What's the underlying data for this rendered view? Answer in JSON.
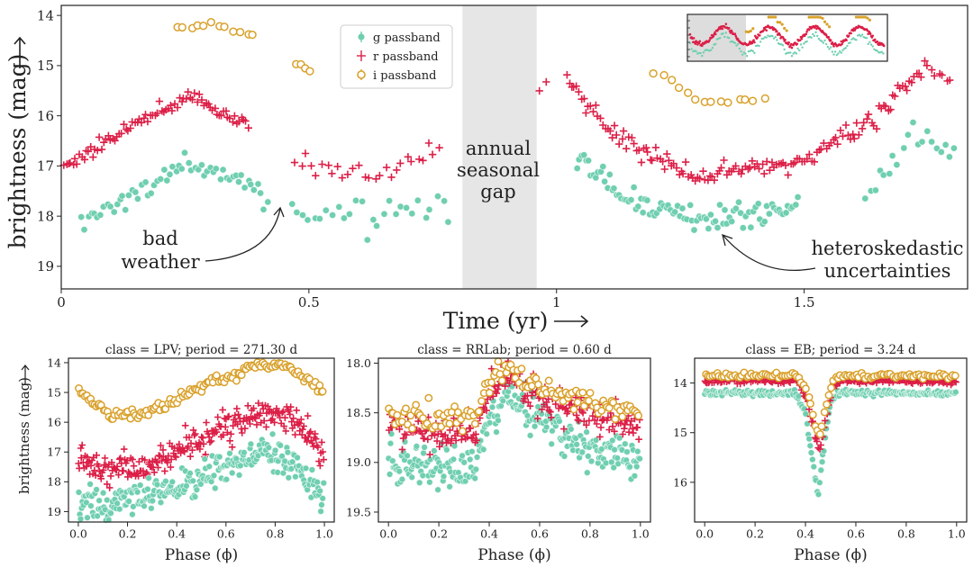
{
  "colors": {
    "g": "#6fcfb0",
    "g_edge": "#e8f7f1",
    "r": "#dc1f47",
    "i": "#d9a12b",
    "gap": "#e6e6e6",
    "axis": "#222222",
    "inset_bg": "#dddddd"
  },
  "chart_data": [
    {
      "id": "main",
      "type": "scatter",
      "xlabel": "Time (yr)",
      "ylabel": "brightness (mag)",
      "xlim": [
        0,
        1.83
      ],
      "ylim": [
        19.45,
        13.8
      ],
      "y_inverted": true,
      "xticks": [
        0,
        0.5,
        1,
        1.5
      ],
      "xtick_labels": [
        "0",
        "0.5",
        "1",
        "1.5"
      ],
      "yticks": [
        14,
        15,
        16,
        17,
        18,
        19
      ],
      "ytick_labels": [
        "14",
        "15",
        "16",
        "17",
        "18",
        "19"
      ],
      "legend": {
        "placement": "top-center",
        "entries": [
          {
            "band": "g",
            "label": "g passband"
          },
          {
            "band": "r",
            "label": "r passband"
          },
          {
            "band": "i",
            "label": "i passband"
          }
        ]
      },
      "shaded_region": {
        "x": [
          0.81,
          0.96
        ],
        "label_lines": [
          "annual",
          "seasonal",
          "gap"
        ]
      },
      "annotations": [
        {
          "id": "bad-weather",
          "lines": [
            "bad",
            "weather"
          ],
          "target_x": 0.44,
          "target_y": 17.85
        },
        {
          "id": "heteroskedastic",
          "lines": [
            "heteroskedastic",
            "uncertainties"
          ],
          "target_x": 1.33,
          "target_y": 18.25
        }
      ],
      "inset": {
        "placement": "top-right",
        "content": "multi-season light curve overview"
      },
      "series": [
        {
          "band": "g",
          "name": "g passband",
          "segments": [
            {
              "x0": 0.04,
              "x1": 0.42,
              "n": 60,
              "curve": [
                [
                  0.04,
                  17.95
                ],
                [
                  0.12,
                  17.7
                ],
                [
                  0.27,
                  16.95
                ],
                [
                  0.35,
                  17.2
                ],
                [
                  0.42,
                  17.7
                ]
              ],
              "noise": 0.12
            },
            {
              "x0": 0.46,
              "x1": 0.79,
              "n": 28,
              "curve": [
                [
                  0.46,
                  17.9
                ],
                [
                  0.62,
                  18.05
                ],
                [
                  0.79,
                  17.8
                ]
              ],
              "noise": 0.18
            },
            {
              "x0": 1.04,
              "x1": 1.49,
              "n": 95,
              "curve": [
                [
                  1.04,
                  16.7
                ],
                [
                  1.13,
                  17.6
                ],
                [
                  1.28,
                  18.1
                ],
                [
                  1.37,
                  18.0
                ],
                [
                  1.49,
                  17.8
                ]
              ],
              "noise": 0.14
            },
            {
              "x0": 1.62,
              "x1": 1.81,
              "n": 20,
              "curve": [
                [
                  1.62,
                  17.6
                ],
                [
                  1.72,
                  16.35
                ],
                [
                  1.81,
                  16.8
                ]
              ],
              "noise": 0.15
            }
          ]
        },
        {
          "band": "r",
          "name": "r passband",
          "segments": [
            {
              "x0": 0.0,
              "x1": 0.38,
              "n": 85,
              "curve": [
                [
                  0.0,
                  17.05
                ],
                [
                  0.08,
                  16.6
                ],
                [
                  0.16,
                  16.05
                ],
                [
                  0.27,
                  15.65
                ],
                [
                  0.38,
                  16.2
                ]
              ],
              "noise": 0.07
            },
            {
              "x0": 0.47,
              "x1": 0.77,
              "n": 28,
              "curve": [
                [
                  0.47,
                  16.9
                ],
                [
                  0.63,
                  17.3
                ],
                [
                  0.77,
                  16.65
                ]
              ],
              "noise": 0.14
            },
            {
              "x0": 0.96,
              "x1": 0.99,
              "n": 2,
              "curve": [
                [
                  0.96,
                  15.55
                ],
                [
                  0.99,
                  15.2
                ]
              ],
              "noise": 0.03
            },
            {
              "x0": 1.02,
              "x1": 1.74,
              "n": 150,
              "curve": [
                [
                  1.02,
                  15.25
                ],
                [
                  1.1,
                  16.3
                ],
                [
                  1.28,
                  17.2
                ],
                [
                  1.5,
                  16.9
                ],
                [
                  1.66,
                  15.9
                ],
                [
                  1.74,
                  15.0
                ]
              ],
              "noise": 0.1
            },
            {
              "x0": 1.74,
              "x1": 1.8,
              "n": 8,
              "curve": [
                [
                  1.74,
                  14.95
                ],
                [
                  1.8,
                  15.35
                ]
              ],
              "noise": 0.06
            }
          ]
        },
        {
          "band": "i",
          "name": "i passband",
          "segments": [
            {
              "x0": 0.23,
              "x1": 0.4,
              "n": 12,
              "curve": [
                [
                  0.23,
                  14.32
                ],
                [
                  0.3,
                  14.15
                ],
                [
                  0.4,
                  14.45
                ]
              ],
              "noise": 0.03
            },
            {
              "x0": 0.47,
              "x1": 0.51,
              "n": 4,
              "curve": [
                [
                  0.47,
                  14.9
                ],
                [
                  0.51,
                  15.15
                ]
              ],
              "noise": 0.02
            },
            {
              "x0": 1.19,
              "x1": 1.43,
              "n": 14,
              "curve": [
                [
                  1.19,
                  15.05
                ],
                [
                  1.29,
                  15.7
                ],
                [
                  1.43,
                  15.7
                ]
              ],
              "noise": 0.04
            }
          ]
        }
      ]
    },
    {
      "id": "lpv",
      "type": "scatter",
      "title": "class  =  LPV; period = 271.30 d",
      "xlabel": "Phase (ϕ)",
      "ylabel": "brightness (mag)",
      "xlim": [
        -0.04,
        1.04
      ],
      "ylim": [
        19.35,
        13.85
      ],
      "y_inverted": true,
      "xticks": [
        0,
        0.2,
        0.4,
        0.6,
        0.8,
        1.0
      ],
      "xtick_labels": [
        "0.0",
        "0.2",
        "0.4",
        "0.6",
        "0.8",
        "1.0"
      ],
      "yticks": [
        14,
        15,
        16,
        17,
        18,
        19
      ],
      "ytick_labels": [
        "14",
        "15",
        "16",
        "17",
        "18",
        "19"
      ],
      "series": [
        {
          "band": "i",
          "name": "i passband",
          "n": 130,
          "curve": [
            [
              0,
              15.0
            ],
            [
              0.12,
              15.7
            ],
            [
              0.25,
              15.8
            ],
            [
              0.35,
              15.5
            ],
            [
              0.5,
              14.8
            ],
            [
              0.65,
              14.35
            ],
            [
              0.75,
              14.0
            ],
            [
              0.88,
              14.2
            ],
            [
              1.0,
              15.0
            ]
          ],
          "noise": 0.1
        },
        {
          "band": "r",
          "name": "r passband",
          "n": 260,
          "curve": [
            [
              0,
              17.3
            ],
            [
              0.15,
              17.6
            ],
            [
              0.3,
              17.4
            ],
            [
              0.45,
              16.8
            ],
            [
              0.6,
              16.2
            ],
            [
              0.75,
              15.6
            ],
            [
              0.88,
              16.0
            ],
            [
              1.0,
              17.2
            ]
          ],
          "noise": 0.28
        },
        {
          "band": "g",
          "name": "g passband",
          "n": 260,
          "curve": [
            [
              0,
              18.6
            ],
            [
              0.12,
              18.9
            ],
            [
              0.25,
              18.5
            ],
            [
              0.45,
              18.0
            ],
            [
              0.6,
              17.4
            ],
            [
              0.75,
              16.9
            ],
            [
              0.88,
              17.4
            ],
            [
              1.0,
              18.7
            ]
          ],
          "noise": 0.3
        }
      ]
    },
    {
      "id": "rrlab",
      "type": "scatter",
      "title": "class  =  RRLab; period = 0.60 d",
      "xlabel": "Phase (ϕ)",
      "ylabel": "",
      "xlim": [
        -0.04,
        1.04
      ],
      "ylim": [
        19.6,
        17.95
      ],
      "y_inverted": true,
      "xticks": [
        0,
        0.2,
        0.4,
        0.6,
        0.8,
        1.0
      ],
      "xtick_labels": [
        "0.0",
        "0.2",
        "0.4",
        "0.6",
        "0.8",
        "1.0"
      ],
      "yticks": [
        18.0,
        18.5,
        19.0,
        19.5
      ],
      "ytick_labels": [
        "18.0",
        "18.5",
        "19.0",
        "19.5"
      ],
      "series": [
        {
          "band": "g",
          "name": "g passband",
          "n": 260,
          "curve": [
            [
              0,
              19.0
            ],
            [
              0.2,
              19.05
            ],
            [
              0.34,
              19.05
            ],
            [
              0.4,
              18.6
            ],
            [
              0.46,
              18.3
            ],
            [
              0.6,
              18.6
            ],
            [
              0.8,
              18.85
            ],
            [
              1.0,
              19.0
            ]
          ],
          "noise": 0.1
        },
        {
          "band": "r",
          "name": "r passband",
          "n": 240,
          "curve": [
            [
              0,
              18.65
            ],
            [
              0.2,
              18.7
            ],
            [
              0.34,
              18.7
            ],
            [
              0.4,
              18.3
            ],
            [
              0.47,
              18.15
            ],
            [
              0.6,
              18.35
            ],
            [
              0.8,
              18.5
            ],
            [
              1.0,
              18.65
            ]
          ],
          "noise": 0.08
        },
        {
          "band": "i",
          "name": "i passband",
          "n": 120,
          "curve": [
            [
              0,
              18.5
            ],
            [
              0.2,
              18.55
            ],
            [
              0.33,
              18.55
            ],
            [
              0.4,
              18.2
            ],
            [
              0.48,
              18.05
            ],
            [
              0.6,
              18.25
            ],
            [
              0.8,
              18.4
            ],
            [
              1.0,
              18.5
            ]
          ],
          "noise": 0.06
        }
      ]
    },
    {
      "id": "eb",
      "type": "scatter",
      "title": "class  =  EB; period = 3.24 d",
      "xlabel": "Phase (ϕ)",
      "ylabel": "",
      "xlim": [
        -0.04,
        1.04
      ],
      "ylim": [
        16.8,
        13.5
      ],
      "y_inverted": true,
      "xticks": [
        0,
        0.2,
        0.4,
        0.6,
        0.8,
        1.0
      ],
      "xtick_labels": [
        "0.0",
        "0.2",
        "0.4",
        "0.6",
        "0.8",
        "1.0"
      ],
      "yticks": [
        14,
        15,
        16
      ],
      "ytick_labels": [
        "14",
        "15",
        "16"
      ],
      "series": [
        {
          "band": "g",
          "name": "g passband",
          "n": 220,
          "curve": [
            [
              0,
              14.2
            ],
            [
              0.36,
              14.2
            ],
            [
              0.4,
              14.6
            ],
            [
              0.43,
              15.6
            ],
            [
              0.45,
              16.3
            ],
            [
              0.47,
              15.4
            ],
            [
              0.5,
              14.4
            ],
            [
              0.53,
              14.2
            ],
            [
              1.0,
              14.2
            ]
          ],
          "noise": 0.03
        },
        {
          "band": "r",
          "name": "r passband",
          "n": 220,
          "curve": [
            [
              0,
              13.95
            ],
            [
              0.37,
              13.95
            ],
            [
              0.41,
              14.4
            ],
            [
              0.44,
              15.1
            ],
            [
              0.455,
              15.4
            ],
            [
              0.48,
              14.7
            ],
            [
              0.51,
              14.05
            ],
            [
              0.55,
              13.95
            ],
            [
              1.0,
              13.95
            ]
          ],
          "noise": 0.03
        },
        {
          "band": "i",
          "name": "i passband",
          "n": 110,
          "curve": [
            [
              0,
              13.85
            ],
            [
              0.37,
              13.85
            ],
            [
              0.41,
              14.2
            ],
            [
              0.44,
              14.9
            ],
            [
              0.455,
              15.1
            ],
            [
              0.48,
              14.5
            ],
            [
              0.51,
              13.95
            ],
            [
              0.55,
              13.85
            ],
            [
              1.0,
              13.85
            ]
          ],
          "noise": 0.03
        }
      ]
    }
  ]
}
